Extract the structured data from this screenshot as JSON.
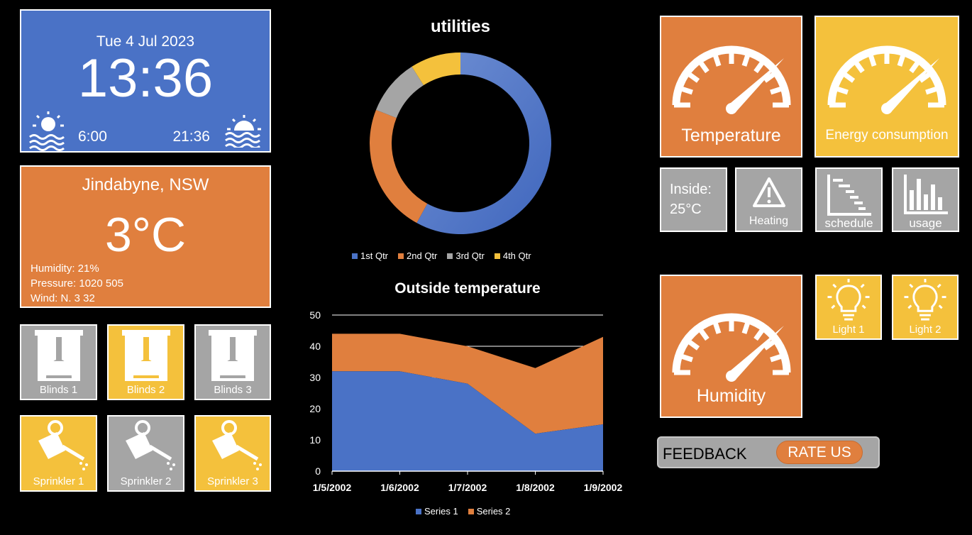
{
  "clock": {
    "date": "Tue 4 Jul 2023",
    "time": "13:36",
    "sunrise": "6:00",
    "sunset": "21:36"
  },
  "weather": {
    "city": "Jindabyne, NSW",
    "temperature": "3°C",
    "humidity": "Humidity: 21%",
    "pressure": "Pressure: 1020 505",
    "wind": "Wind: N. 3 32"
  },
  "blinds": [
    {
      "label": "Blinds 1",
      "state": "gray"
    },
    {
      "label": "Blinds 2",
      "state": "yellow"
    },
    {
      "label": "Blinds 3",
      "state": "gray"
    }
  ],
  "sprinklers": [
    {
      "label": "Sprinkler 1",
      "state": "yellow"
    },
    {
      "label": "Sprinkler 2",
      "state": "gray"
    },
    {
      "label": "Sprinkler 3",
      "state": "yellow"
    }
  ],
  "gauges": {
    "temperature": "Temperature",
    "energy": "Energy consumption",
    "humidity": "Humidity"
  },
  "small_tiles": {
    "inside_label": "Inside:",
    "inside_value": "25°C",
    "heating": "Heating",
    "schedule": "schedule",
    "usage": "usage"
  },
  "lights": [
    "Light 1",
    "Light 2"
  ],
  "feedback": {
    "label": "FEEDBACK",
    "button": "RATE US"
  },
  "colors": {
    "blue": "#4a72c6",
    "orange": "#e07f3e",
    "yellow": "#f4c13c",
    "gray": "#a5a5a5"
  },
  "chart_data": [
    {
      "type": "pie",
      "title": "utilities",
      "categories": [
        "1st Qtr",
        "2nd Qtr",
        "3rd Qtr",
        "4th Qtr"
      ],
      "values": [
        58,
        23,
        10,
        9
      ],
      "colors": [
        "#4a72c6",
        "#e07f3e",
        "#a5a5a5",
        "#f4c13c"
      ],
      "legend": "bottom"
    },
    {
      "type": "area",
      "title": "Outside temperature",
      "categories": [
        "1/5/2002",
        "1/6/2002",
        "1/7/2002",
        "1/8/2002",
        "1/9/2002"
      ],
      "series": [
        {
          "name": "Series 1",
          "values": [
            32,
            32,
            28,
            12,
            15
          ],
          "color": "#4a72c6"
        },
        {
          "name": "Series 2",
          "values": [
            12,
            12,
            12,
            21,
            28
          ],
          "color": "#e07f3e"
        }
      ],
      "ylim": [
        0,
        50
      ],
      "yticks": [
        0,
        10,
        20,
        30,
        40,
        50
      ],
      "stacked": true,
      "legend": "bottom"
    }
  ]
}
